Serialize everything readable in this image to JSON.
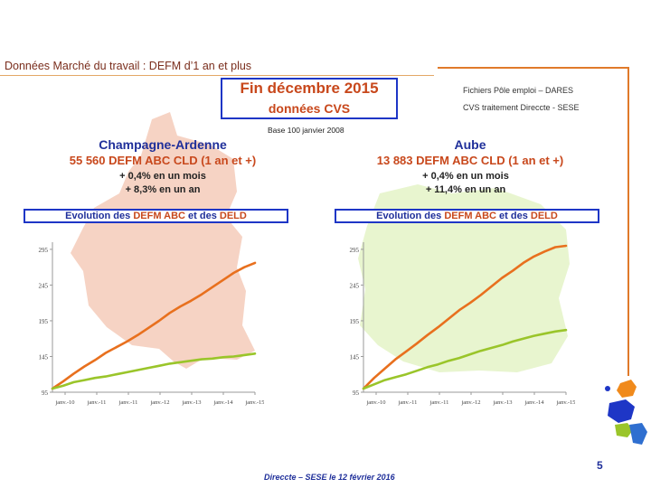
{
  "slide": {
    "title": "Données Marché du travail : DEFM d’1 an et plus",
    "headline": "Fin  décembre  2015",
    "headline_sub": "données CVS",
    "source_line1": "Fichiers Pôle emploi – DARES",
    "source_line2": "CVS traitement Direccte - SESE",
    "base": "Base 100 janvier 2008",
    "page_number": "5",
    "footer": "Direccte – SESE le 12 février 2016"
  },
  "panels": [
    {
      "region": "Champagne-Ardenne",
      "defm": "55 560  DEFM ABC CLD (1 an et +)",
      "change_month": "+ 0,4%  en un mois",
      "change_year": "+ 8,3%  en un an",
      "legend_a": "Evolution des ",
      "legend_b": "DEFM ABC",
      "legend_c": " et des ",
      "legend_d": "DELD",
      "map_color": "#f6d3c4"
    },
    {
      "region": "Aube",
      "defm": "13 883  DEFM ABC CLD (1 an et +)",
      "change_month": "+ 0,4%  en un mois",
      "change_year": "+ 11,4%  en un an",
      "legend_a": "Evolution des ",
      "legend_b": "DEFM ABC",
      "legend_c": " et des ",
      "legend_d": "DELD",
      "map_color": "#e8f5cf"
    }
  ],
  "chart_data": [
    {
      "type": "line",
      "yticks": [
        "295",
        "245",
        "195",
        "145",
        "95"
      ],
      "xticks": [
        "janv.-10",
        "janv.-11",
        "janv.-11",
        "janv.-12",
        "janv.-13",
        "janv.-14",
        "janv.-15"
      ],
      "ylim": [
        95,
        305
      ],
      "series": [
        {
          "color": "#e8701e",
          "values": [
            100,
            110,
            121,
            131,
            140,
            150,
            158,
            166,
            175,
            185,
            195,
            206,
            215,
            223,
            232,
            242,
            252,
            262,
            270,
            276
          ]
        },
        {
          "color": "#9ac52a",
          "values": [
            100,
            104,
            109,
            112,
            115,
            117,
            120,
            123,
            126,
            129,
            132,
            135,
            137,
            139,
            141,
            142,
            144,
            145,
            147,
            149
          ]
        }
      ]
    },
    {
      "type": "line",
      "yticks": [
        "295",
        "245",
        "195",
        "145",
        "95"
      ],
      "xticks": [
        "janv.-10",
        "janv.-11",
        "janv.-11",
        "janv.-12",
        "janv.-13",
        "janv.-14",
        "janv.-15"
      ],
      "ylim": [
        95,
        305
      ],
      "series": [
        {
          "color": "#e8701e",
          "values": [
            100,
            115,
            128,
            141,
            152,
            163,
            175,
            186,
            198,
            210,
            220,
            231,
            243,
            255,
            265,
            276,
            285,
            292,
            298,
            300
          ]
        },
        {
          "color": "#9ac52a",
          "values": [
            100,
            106,
            112,
            116,
            120,
            125,
            130,
            134,
            139,
            143,
            148,
            153,
            157,
            161,
            166,
            170,
            174,
            177,
            180,
            182
          ]
        }
      ]
    }
  ]
}
